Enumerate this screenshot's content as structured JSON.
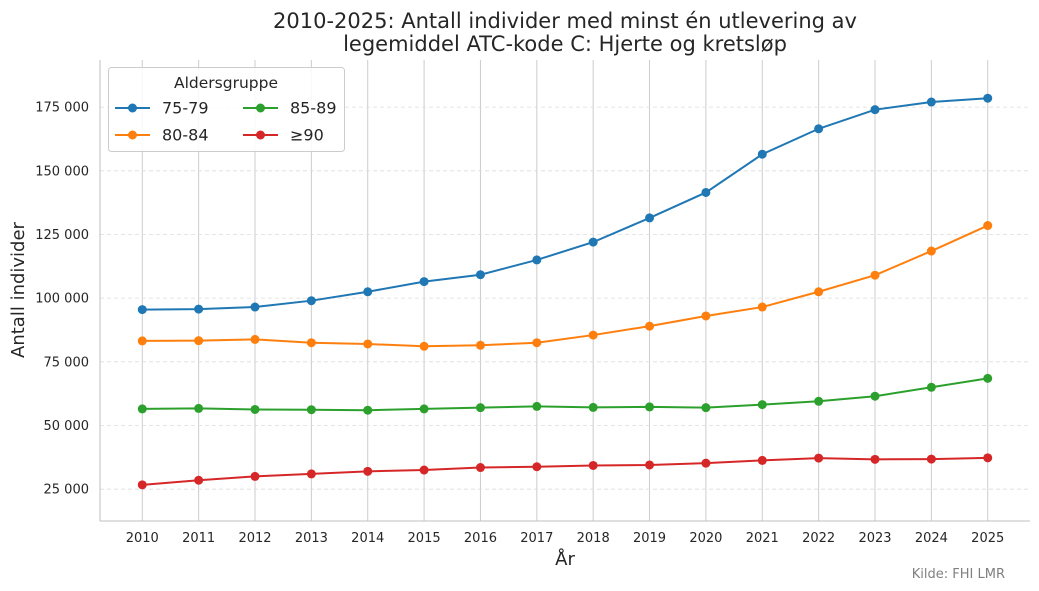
{
  "chart_data": {
    "type": "line",
    "title_line1": "2010-2025: Antall individer med minst én utlevering av",
    "title_line2": "legemiddel ATC-kode C: Hjerte og kretsløp",
    "xlabel": "År",
    "ylabel": "Antall individer",
    "x": [
      2010,
      2011,
      2012,
      2013,
      2014,
      2015,
      2016,
      2017,
      2018,
      2019,
      2020,
      2021,
      2022,
      2023,
      2024,
      2025
    ],
    "x_tick_labels": [
      "2010",
      "2011",
      "2012",
      "2013",
      "2014",
      "2015",
      "2016",
      "2017",
      "2018",
      "2019",
      "2020",
      "2021",
      "2022",
      "2023",
      "2024",
      "2025"
    ],
    "y_ticks": [
      25000,
      50000,
      75000,
      100000,
      125000,
      150000,
      175000
    ],
    "y_tick_labels": [
      "25 000",
      "50 000",
      "75 000",
      "100 000",
      "125 000",
      "150 000",
      "175 000"
    ],
    "ylim": [
      12500,
      193500
    ],
    "xlim": [
      2009.25,
      2025.75
    ],
    "grid": "on",
    "legend": {
      "title": "Aldersgruppe",
      "placement": "top-left",
      "columns": 2
    },
    "series": [
      {
        "name": "75-79",
        "color": "#1f77b4",
        "values": [
          95500,
          95700,
          96500,
          99000,
          102500,
          106500,
          109200,
          115000,
          122000,
          131500,
          141500,
          156500,
          166500,
          174000,
          177000,
          178500
        ]
      },
      {
        "name": "80-84",
        "color": "#ff7f0e",
        "values": [
          83200,
          83300,
          83800,
          82500,
          82000,
          81100,
          81500,
          82500,
          85500,
          89000,
          93000,
          96500,
          102500,
          109000,
          118500,
          128500
        ]
      },
      {
        "name": "85-89",
        "color": "#2ca02c",
        "values": [
          56500,
          56700,
          56300,
          56200,
          56000,
          56500,
          57000,
          57500,
          57100,
          57300,
          57000,
          58200,
          59500,
          61500,
          65000,
          68500
        ]
      },
      {
        "name": "≥90",
        "color": "#d62728",
        "values": [
          26700,
          28500,
          30000,
          31000,
          32000,
          32500,
          33500,
          33800,
          34300,
          34500,
          35200,
          36300,
          37200,
          36700,
          36800,
          37300
        ]
      }
    ],
    "source": "Kilde: FHI LMR"
  }
}
